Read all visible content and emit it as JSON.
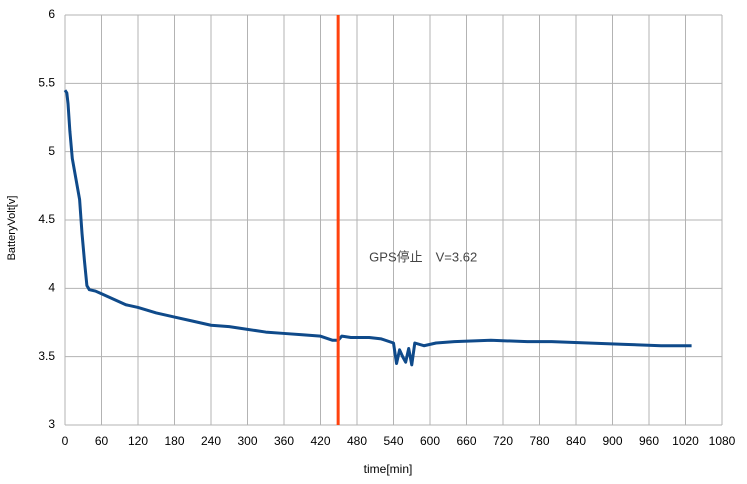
{
  "chart_data": {
    "type": "line",
    "x_label": "time[min]",
    "y_label": "BatteryVolt[v]",
    "xlim": [
      0,
      1080
    ],
    "xticks": [
      0,
      60,
      120,
      180,
      240,
      300,
      360,
      420,
      480,
      540,
      600,
      660,
      720,
      780,
      840,
      900,
      960,
      1020,
      1080
    ],
    "ylim": [
      3,
      6
    ],
    "yticks": [
      3,
      3.5,
      4,
      4.5,
      5,
      5.5,
      6
    ],
    "grid": true,
    "x": [
      0,
      3,
      5,
      8,
      12,
      18,
      24,
      28,
      32,
      36,
      40,
      50,
      60,
      80,
      100,
      120,
      150,
      180,
      210,
      240,
      270,
      300,
      330,
      360,
      390,
      420,
      440,
      449,
      455,
      470,
      500,
      520,
      540,
      545,
      550,
      555,
      560,
      565,
      570,
      575,
      590,
      610,
      640,
      700,
      760,
      800,
      860,
      920,
      980,
      1030
    ],
    "series": [
      {
        "color": "#0f4a8a",
        "values": [
          5.45,
          5.43,
          5.35,
          5.15,
          4.95,
          4.8,
          4.65,
          4.4,
          4.2,
          4.02,
          3.99,
          3.98,
          3.96,
          3.92,
          3.88,
          3.86,
          3.82,
          3.79,
          3.76,
          3.73,
          3.72,
          3.7,
          3.68,
          3.67,
          3.66,
          3.65,
          3.62,
          3.62,
          3.65,
          3.64,
          3.64,
          3.63,
          3.6,
          3.45,
          3.55,
          3.5,
          3.46,
          3.56,
          3.44,
          3.6,
          3.58,
          3.6,
          3.61,
          3.62,
          3.61,
          3.61,
          3.6,
          3.59,
          3.58,
          3.58
        ]
      }
    ],
    "vline": {
      "x": 449,
      "color": "#ff420e"
    },
    "annotation": {
      "text": "GPS停止　V=3.62",
      "x": 500,
      "y": 4.22
    }
  }
}
